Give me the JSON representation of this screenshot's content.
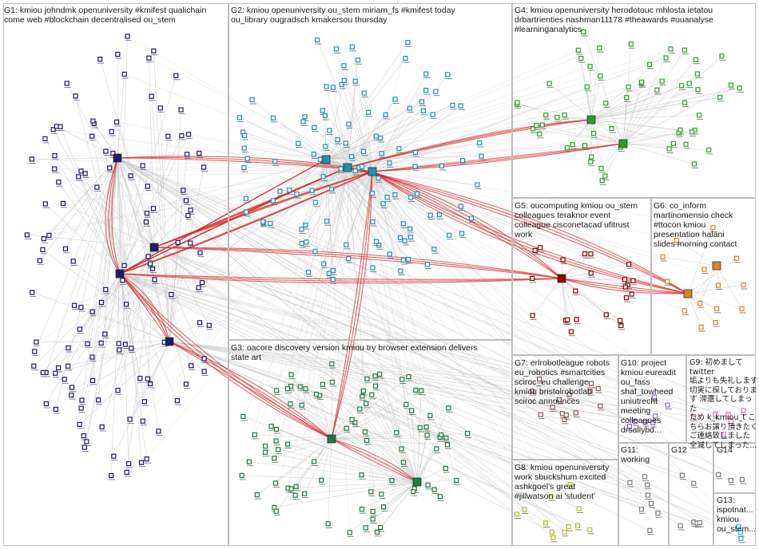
{
  "graph": {
    "edge_color": "#c8c8c8",
    "highlight_edge_color": "#d62728",
    "groups": [
      {
        "id": "G1",
        "label": "G1: kmiou johndmk openuniversity #kmifest qualichain\ncome web #blockchain decentralised ou_stem",
        "color": "#1a1a6e"
      },
      {
        "id": "G2",
        "label": "G2: kmiou openuniversity ou_stem miriam_fs #kmifest today\nou_library ougradsch kmakersou thursday",
        "color": "#1f8fb3"
      },
      {
        "id": "G3",
        "label": "G3: oacore discovery version kmiou try browser extension delivers\nstate art",
        "color": "#1e7a3c"
      },
      {
        "id": "G4",
        "label": "G4: kmiou openuniversity herodotouc mhlosta ietatou\ndrbartrienties nashman11178 #theawards #ouanalyse\n#learninganalytics",
        "color": "#2ca02c"
      },
      {
        "id": "G5",
        "label": "G5: oucomputing kmiou ou_stem\ncolleagues teraknor event\ncolleague cisconetacad ufitrust\nwork",
        "color": "#8b0000"
      },
      {
        "id": "G6",
        "label": "G6: co_inform\nmartinomensio check\n#ttocon kmiou\npresentation halani\nslides morning contact",
        "color": "#d9822b"
      },
      {
        "id": "G7",
        "label": "G7: erlrobotleague robots\neu_robotics #smartcities\nsciroc_eu challenge\nkmiou bristolrobotlab\nsciroc announces",
        "color": "#8c564b"
      },
      {
        "id": "G8",
        "label": "G8: kmiou openuniversity\nwork sbuckshum excited\nashkgoel's great\n#jillwatson ai 'student'",
        "color": "#bcbd22"
      },
      {
        "id": "G9",
        "label": "G9: 初めまして twitter\n垢よりも失礼します\n切実に探しておりま\nす 滞還してしまった\nため k_kmiou_t こ\nちらお譲り頂きたく\nご連絡致しました\n全滅してしまった...",
        "color": "#e377c2"
      },
      {
        "id": "G10",
        "label": "G10: project\nkmiou eureadit\nou_fass\nshaf_towheed\nuniutrecht\nmeeting\ncolleagues\ndrsallybd...",
        "color": "#9467bd"
      },
      {
        "id": "G11",
        "label": "G11:\nworking",
        "color": "#7f7f7f"
      },
      {
        "id": "G12",
        "label": "G12",
        "color": "#7f7f7f"
      },
      {
        "id": "G13",
        "label": "G13:\nispotnat...\nkmiou\nou_stem...",
        "color": "#17becf"
      },
      {
        "id": "G14",
        "label": "G14",
        "color": "#7f7f7f"
      }
    ]
  }
}
